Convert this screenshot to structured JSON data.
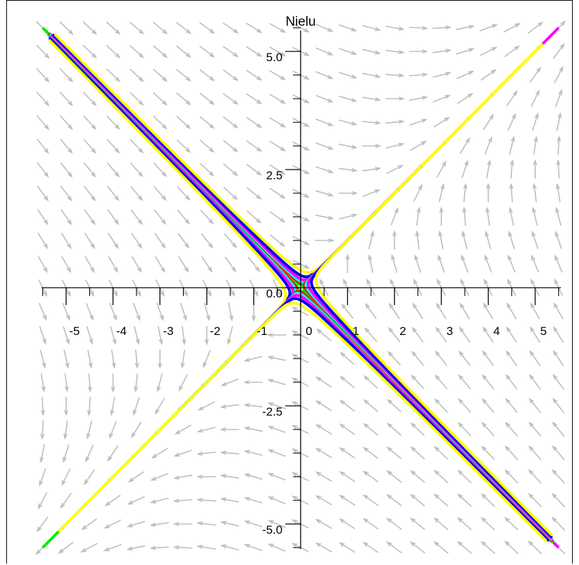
{
  "chart_data": {
    "type": "line",
    "title": "Nielu",
    "xlabel": "",
    "ylabel": "",
    "xlim": [
      -5.5,
      5.5
    ],
    "ylim": [
      -5.5,
      5.5
    ],
    "x_ticks": [
      "-5",
      "-4",
      "-3",
      "-2",
      "-1",
      "0",
      "1",
      "2",
      "3",
      "4",
      "5"
    ],
    "y_ticks": [
      "5.0",
      "2.5",
      "0.0",
      "-2.5",
      "-5.0"
    ],
    "grid": false,
    "legend": "none",
    "field_color": "#bdbdbd",
    "series_colors": [
      "#00ee00",
      "#ff0000",
      "#00ffff",
      "#ff00ff",
      "#0000ff",
      "#ffff00"
    ],
    "note_field": "direction field arrows with trajectories of a linear system; diagonals y = x and y = -x are straight-line solutions"
  }
}
